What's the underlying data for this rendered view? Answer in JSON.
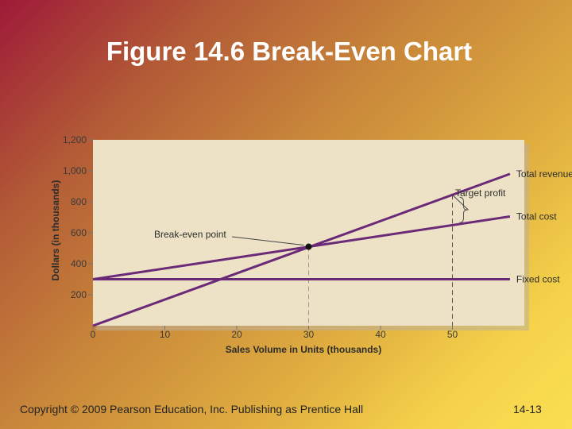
{
  "slide": {
    "title": "Figure 14.6 Break-Even Chart",
    "copyright": "Copyright © 2009 Pearson Education, Inc.  Publishing as Prentice Hall",
    "page_number": "14-13"
  },
  "chart_data": {
    "type": "line",
    "xlabel": "Sales Volume in Units (thousands)",
    "ylabel": "Dollars (in thousands)",
    "xlim": [
      0,
      60
    ],
    "ylim": [
      0,
      1200
    ],
    "x_ticks": [
      0,
      10,
      20,
      30,
      40,
      50
    ],
    "y_ticks": [
      200,
      400,
      600,
      800,
      1000,
      1200
    ],
    "y_tick_labels": [
      "200",
      "400",
      "600",
      "800",
      "1,000",
      "1,200"
    ],
    "series": [
      {
        "name": "Total revenue",
        "x": [
          0,
          58
        ],
        "y": [
          0,
          980
        ],
        "color": "#6b2a78"
      },
      {
        "name": "Total cost",
        "x": [
          0,
          58
        ],
        "y": [
          300,
          705
        ],
        "color": "#6b2a78"
      },
      {
        "name": "Fixed cost",
        "x": [
          0,
          58
        ],
        "y": [
          300,
          300
        ],
        "color": "#6b2a78"
      }
    ],
    "annotations": {
      "break_even": {
        "label": "Break-even point",
        "x": 30,
        "y": 510
      },
      "target_profit": {
        "label": "Target profit",
        "x": 50,
        "y_low": 650,
        "y_high": 845
      }
    },
    "reference_lines_x": [
      30,
      50
    ],
    "background_color": "#ede2c6",
    "line_color": "#6b2a78"
  }
}
